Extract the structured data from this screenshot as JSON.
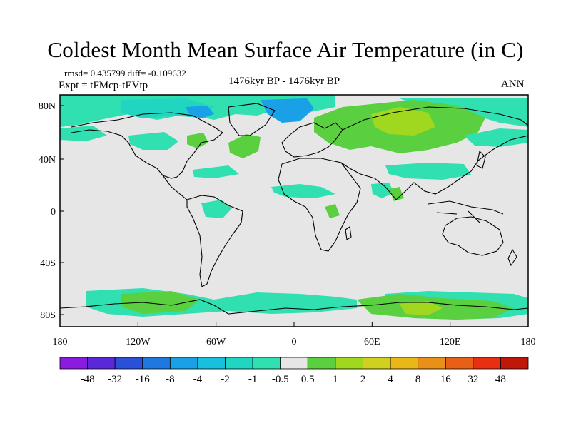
{
  "title": "Coldest Month Mean Surface Air Temperature (in C)",
  "stats": "rmsd= 0.435799 diff= -0.109632",
  "experiment": "Expt = tFMcp-tEVtp",
  "period": "1476kyr BP - 1476kyr BP",
  "season": "ANN",
  "axes": {
    "x_ticks": [
      "180",
      "120W",
      "60W",
      "0",
      "60E",
      "120E",
      "180"
    ],
    "y_ticks": [
      "80N",
      "40N",
      "0",
      "40S",
      "80S"
    ]
  },
  "colorbar": {
    "labels": [
      "-48",
      "-32",
      "-16",
      "-8",
      "-4",
      "-2",
      "-1",
      "-0.5",
      "0.5",
      "1",
      "2",
      "4",
      "8",
      "16",
      "32",
      "48"
    ],
    "colors": [
      "#8c1be0",
      "#5a28d8",
      "#2a4fd9",
      "#1f77e0",
      "#1aa0e6",
      "#18c0e0",
      "#20d6c0",
      "#30e0b0",
      "#e6e6e6",
      "#5ad040",
      "#a0d820",
      "#d0d020",
      "#e8b818",
      "#e89018",
      "#e86018",
      "#e83010",
      "#c01808"
    ]
  },
  "map_colors": {
    "neutral": "#e6e6e6",
    "cool_light": "#30e0b0",
    "cool_mid": "#20d6c0",
    "cool_deep": "#1aa0e6",
    "warm_light": "#5ad040",
    "warm_mid": "#a0d820",
    "warm_deep": "#d0d020",
    "coast": "#000000"
  }
}
